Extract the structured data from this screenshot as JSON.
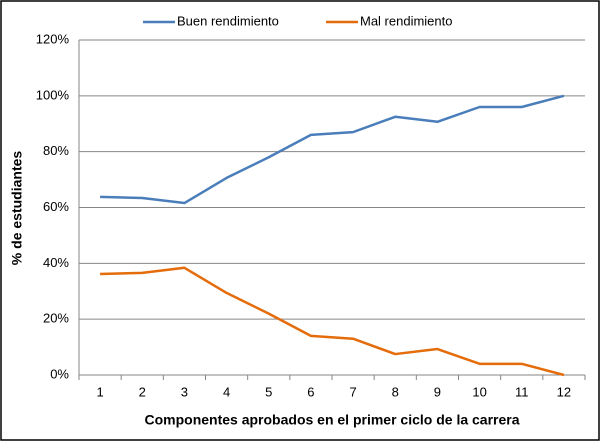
{
  "chart_data": {
    "type": "line",
    "x_label": "Componentes aprobados en el primer ciclo de la carrera",
    "y_label": "% de estudiantes",
    "categories": [
      "1",
      "2",
      "3",
      "4",
      "5",
      "6",
      "7",
      "8",
      "9",
      "10",
      "11",
      "12"
    ],
    "series": [
      {
        "name": "Buen rendimiento",
        "color": "#4a7ebb",
        "values": [
          63.8,
          63.4,
          61.6,
          70.6,
          78,
          86,
          87,
          92.5,
          90.7,
          96,
          96,
          100
        ]
      },
      {
        "name": "Mal rendimiento",
        "color": "#e46c0a",
        "values": [
          36.2,
          36.6,
          38.4,
          29.4,
          22,
          14,
          13,
          7.5,
          9.3,
          4,
          4,
          0
        ]
      }
    ],
    "ylim": [
      0,
      120
    ],
    "yticks": [
      {
        "value": 0,
        "label": "0%"
      },
      {
        "value": 20,
        "label": "20%"
      },
      {
        "value": 40,
        "label": "40%"
      },
      {
        "value": 60,
        "label": "60%"
      },
      {
        "value": 80,
        "label": "80%"
      },
      {
        "value": 100,
        "label": "100%"
      },
      {
        "value": 120,
        "label": "120%"
      }
    ],
    "grid": true,
    "legend": "top"
  }
}
